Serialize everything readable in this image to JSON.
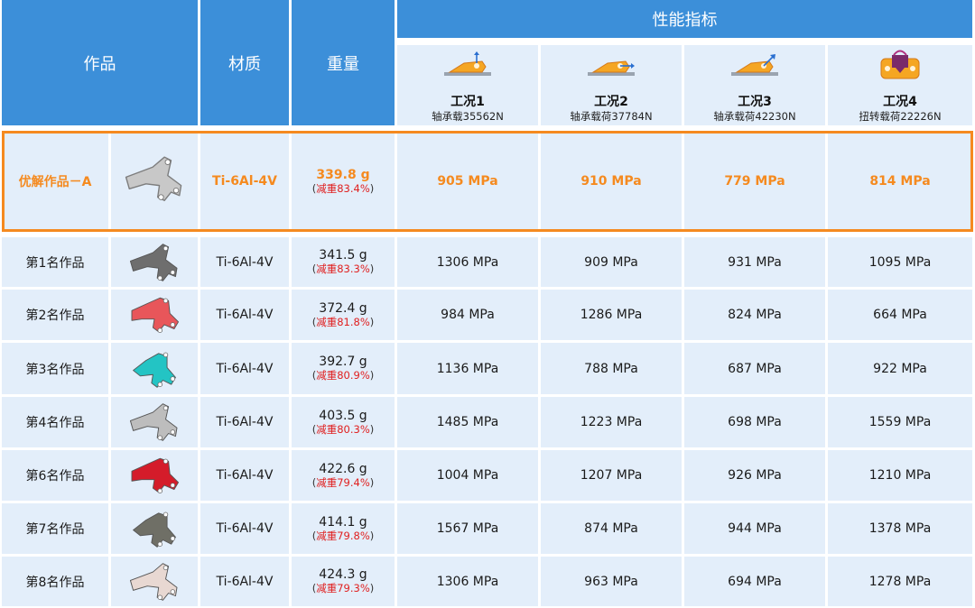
{
  "header": {
    "work": "作品",
    "material": "材质",
    "weight": "重量",
    "performance": "性能指标",
    "conditions": [
      {
        "title": "工况1",
        "load": "轴承载35562N",
        "icon": "bearing-load-up-icon"
      },
      {
        "title": "工况2",
        "load": "轴承载荷37784N",
        "icon": "bearing-load-side-icon"
      },
      {
        "title": "工况3",
        "load": "轴承载荷42230N",
        "icon": "bearing-load-diagonal-icon"
      },
      {
        "title": "工况4",
        "load": "扭转载荷22226N",
        "icon": "torsion-load-icon"
      }
    ]
  },
  "highlight_row": {
    "name": "优解作品－A",
    "material": "Ti-6Al-4V",
    "weight": "339.8 g",
    "reduction": "减重83.4%",
    "stress": [
      "905 MPa",
      "910 MPa",
      "779 MPa",
      "814 MPa"
    ],
    "part_color": "#c8c8c8"
  },
  "rows": [
    {
      "name": "第1名作品",
      "material": "Ti-6Al-4V",
      "weight": "341.5 g",
      "reduction": "减重83.3%",
      "stress": [
        "1306 MPa",
        "909 MPa",
        "931 MPa",
        "1095 MPa"
      ],
      "part_color": "#6e6e6e"
    },
    {
      "name": "第2名作品",
      "material": "Ti-6Al-4V",
      "weight": "372.4 g",
      "reduction": "减重81.8%",
      "stress": [
        "984 MPa",
        "1286 MPa",
        "824 MPa",
        "664 MPa"
      ],
      "part_color": "#e8565a"
    },
    {
      "name": "第3名作品",
      "material": "Ti-6Al-4V",
      "weight": "392.7 g",
      "reduction": "减重80.9%",
      "stress": [
        "1136 MPa",
        "788 MPa",
        "687 MPa",
        "922 MPa"
      ],
      "part_color": "#23c4c4"
    },
    {
      "name": "第4名作品",
      "material": "Ti-6Al-4V",
      "weight": "403.5 g",
      "reduction": "减重80.3%",
      "stress": [
        "1485 MPa",
        "1223 MPa",
        "698 MPa",
        "1559 MPa"
      ],
      "part_color": "#bdbdbd"
    },
    {
      "name": "第6名作品",
      "material": "Ti-6Al-4V",
      "weight": "422.6 g",
      "reduction": "减重79.4%",
      "stress": [
        "1004 MPa",
        "1207 MPa",
        "926 MPa",
        "1210 MPa"
      ],
      "part_color": "#d41c2a"
    },
    {
      "name": "第7名作品",
      "material": "Ti-6Al-4V",
      "weight": "414.1 g",
      "reduction": "减重79.8%",
      "stress": [
        "1567 MPa",
        "874 MPa",
        "944 MPa",
        "1378 MPa"
      ],
      "part_color": "#6f6f66"
    },
    {
      "name": "第8名作品",
      "material": "Ti-6Al-4V",
      "weight": "424.3 g",
      "reduction": "减重79.3%",
      "stress": [
        "1306 MPa",
        "963 MPa",
        "694 MPa",
        "1278 MPa"
      ],
      "part_color": "#e8d8d2"
    }
  ]
}
